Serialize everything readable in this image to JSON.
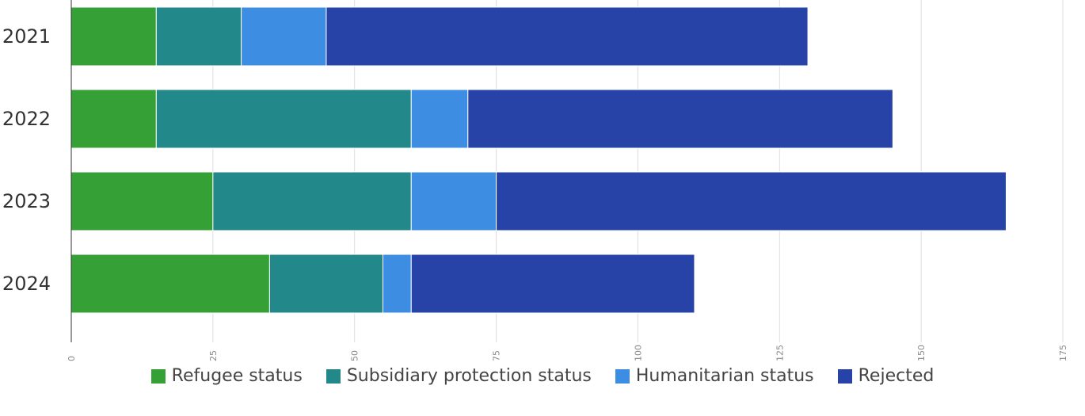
{
  "chart_data": {
    "type": "bar",
    "orientation": "horizontal",
    "stacked": true,
    "categories": [
      "2021",
      "2022",
      "2023",
      "2024"
    ],
    "series": [
      {
        "name": "Refugee status",
        "color": "#34a035",
        "values": [
          15,
          15,
          25,
          35
        ]
      },
      {
        "name": "Subsidiary protection status",
        "color": "#22888a",
        "values": [
          15,
          45,
          35,
          20
        ]
      },
      {
        "name": "Humanitarian status",
        "color": "#3d8de3",
        "values": [
          15,
          10,
          15,
          5
        ]
      },
      {
        "name": "Rejected",
        "color": "#2843a8",
        "values": [
          85,
          75,
          90,
          50
        ]
      }
    ],
    "xlim": [
      0,
      175
    ],
    "x_ticks": [
      "0",
      "25",
      "50",
      "75",
      "100",
      "125",
      "150",
      "175"
    ],
    "grid": true,
    "legend_position": "bottom-center"
  }
}
